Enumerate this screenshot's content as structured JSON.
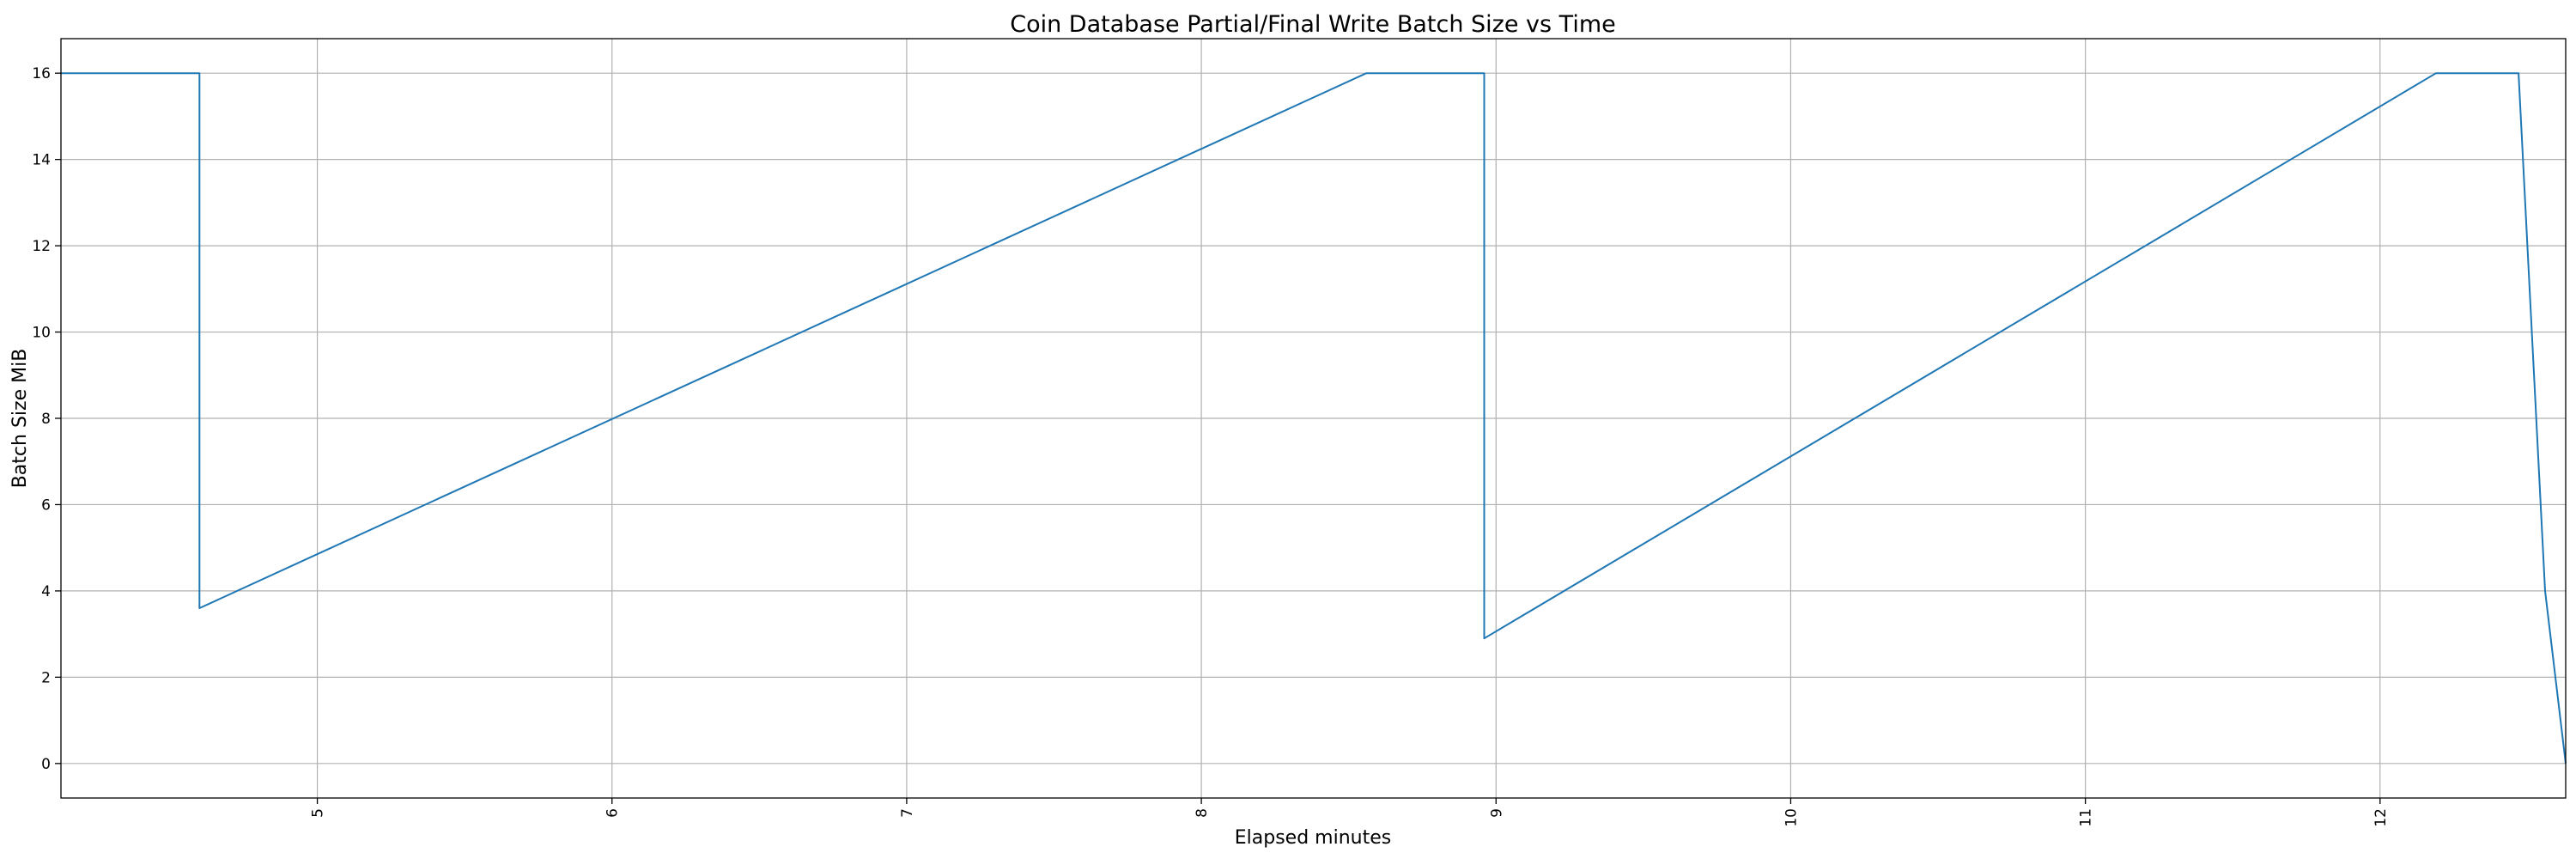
{
  "chart_data": {
    "type": "line",
    "title": "Coin Database Partial/Final Write Batch Size vs Time",
    "xlabel": "Elapsed minutes",
    "ylabel": "Batch Size MiB",
    "xlim": [
      4.13,
      12.63
    ],
    "ylim": [
      -0.8,
      16.8
    ],
    "xticks": [
      "5",
      "6",
      "7",
      "8",
      "9",
      "10",
      "11",
      "12"
    ],
    "yticks": [
      "0",
      "2",
      "4",
      "6",
      "8",
      "10",
      "12",
      "14",
      "16"
    ],
    "x_tick_rotation": "vertical",
    "grid": true,
    "legend": "none",
    "series": [
      {
        "color": "#1f77b4",
        "x": [
          4.13,
          4.6,
          4.6,
          8.56,
          8.96,
          8.96,
          12.19,
          12.47,
          12.56,
          12.63
        ],
        "y": [
          16,
          16,
          3.6,
          16,
          16,
          2.9,
          16,
          16,
          4,
          0
        ]
      }
    ]
  }
}
